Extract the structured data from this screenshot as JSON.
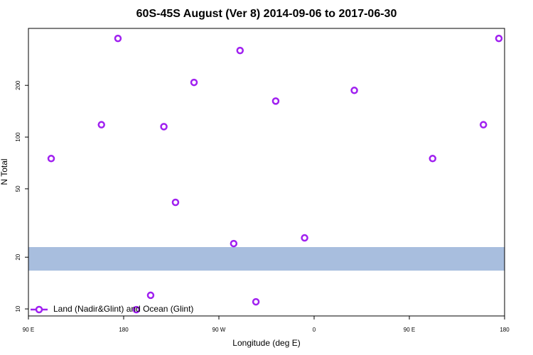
{
  "chart_data": {
    "type": "scatter",
    "title": "60S-45S August (Ver 8)   2014-09-06 to 2017-06-30",
    "xlabel": "Longitude (deg E)",
    "ylabel": "N Total",
    "series": [
      {
        "name": "Land (Nadir&Glint) and Ocean (Glint)",
        "color": "#a020f0",
        "x": [
          111.5,
          159,
          174.6,
          192,
          205.5,
          218,
          229,
          246.5,
          284,
          290,
          305,
          323.7,
          351,
          398,
          472,
          520,
          534.6
        ],
        "values": [
          75,
          118,
          375,
          9.9,
          12,
          115,
          41.7,
          208,
          24,
          319,
          11,
          162,
          25.9,
          187,
          75,
          118,
          375
        ]
      }
    ],
    "band": [
      16.7,
      22.9
    ],
    "band_color": "#a8bede",
    "xlim": [
      90,
      540
    ],
    "xticks": [
      {
        "value": 90,
        "label": "90 E"
      },
      180,
      {
        "value": 270,
        "label": "90 W"
      },
      {
        "value": 360,
        "label": "0"
      },
      {
        "value": 450,
        "label": "90 E"
      },
      {
        "value": 540,
        "label": "180"
      }
    ],
    "ylim": [
      9.1,
      429
    ],
    "ylog": true,
    "yticks": [
      10,
      20,
      50,
      100,
      200
    ],
    "legend": "bottom-left"
  }
}
